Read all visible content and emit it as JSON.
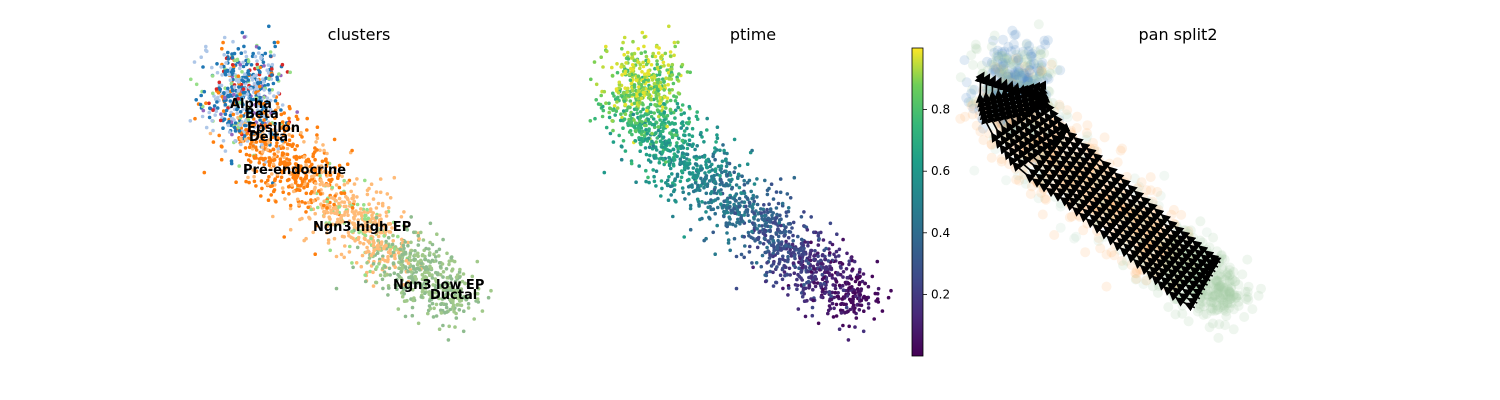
{
  "chart_data": [
    {
      "type": "scatter",
      "title": "clusters",
      "cluster_labels": [
        "Alpha",
        "Beta",
        "Epsilon",
        "Delta",
        "Pre-endocrine",
        "Ngn3 high EP",
        "Ngn3 low EP",
        "Ductal"
      ],
      "cluster_colors": {
        "Alpha": "#1f77b4",
        "Beta": "#aec7e8",
        "Epsilon": "#9467bd",
        "Delta": "#d62728",
        "Pre-endocrine": "#ff7f0e",
        "Ngn3 high EP": "#ffbb78",
        "Ngn3 low EP": "#98df8a",
        "Ductal": "#8fbc8f"
      }
    },
    {
      "type": "scatter",
      "title": "ptime",
      "colorbar": {
        "ticks": [
          "0.2",
          "0.4",
          "0.6",
          "0.8"
        ],
        "range": [
          0.0,
          1.0
        ],
        "colormap": "viridis"
      }
    },
    {
      "type": "scatter",
      "title": "pan split2"
    }
  ]
}
